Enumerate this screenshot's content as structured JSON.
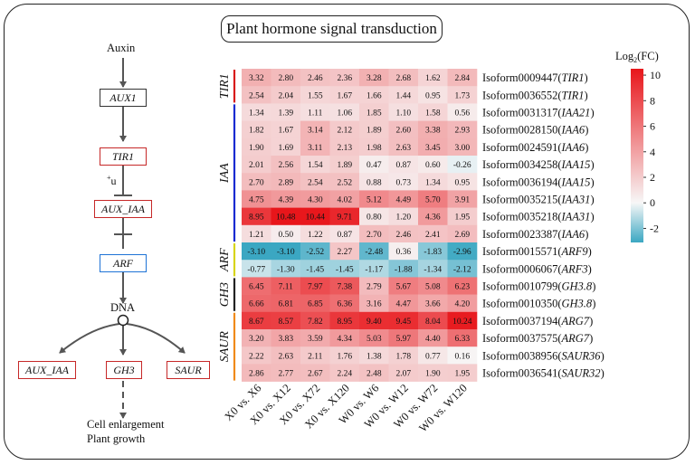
{
  "title": "Plant hormone signal transduction",
  "pathway": {
    "auxin": "Auxin",
    "aux1": "AUX1",
    "tir1": "TIR1",
    "ub": "u",
    "ub_sup": "+",
    "aux_iaa": "AUX_IAA",
    "arf": "ARF",
    "dna": "DNA",
    "out_aux_iaa": "AUX_IAA",
    "out_gh3": "GH3",
    "out_saur": "SAUR",
    "response_1": "Cell enlargement",
    "response_2": "Plant growth"
  },
  "colorbar": {
    "label_main": "Log",
    "label_sub": "2",
    "label_tail": "(FC)",
    "ticks": [
      10,
      8,
      6,
      4,
      2,
      0,
      -2
    ],
    "range": [
      -3.1,
      10.5
    ],
    "colors": {
      "low": "#3ba7c2",
      "mid": "#f7f7f7",
      "high": "#e8161b"
    }
  },
  "chart_data": {
    "type": "heatmap",
    "columns": [
      "X0 vs. X6",
      "X0 vs. X12",
      "X0 vs. X72",
      "X0 vs. X120",
      "W0 vs. W6",
      "W0 vs. W12",
      "W0 vs. W72",
      "W0 vs. W120"
    ],
    "rows": [
      {
        "id": "Isoform0009447",
        "gene": "TIR1"
      },
      {
        "id": "Isoform0036552",
        "gene": "TIR1"
      },
      {
        "id": "Isoform0031317",
        "gene": "IAA21"
      },
      {
        "id": "Isoform0028150",
        "gene": "IAA6"
      },
      {
        "id": "Isoform0024591",
        "gene": "IAA6"
      },
      {
        "id": "Isoform0034258",
        "gene": "IAA15"
      },
      {
        "id": "Isoform0036194",
        "gene": "IAA15"
      },
      {
        "id": "Isoform0035215",
        "gene": "IAA31"
      },
      {
        "id": "Isoform0035218",
        "gene": "IAA31"
      },
      {
        "id": "Isoform0023387",
        "gene": "IAA6"
      },
      {
        "id": "Isoform0015571",
        "gene": "ARF9"
      },
      {
        "id": "Isoform0006067",
        "gene": "ARF3"
      },
      {
        "id": "Isoform0010799",
        "gene": "GH3.8"
      },
      {
        "id": "Isoform0010350",
        "gene": "GH3.8"
      },
      {
        "id": "Isoform0037194",
        "gene": "ARG7"
      },
      {
        "id": "Isoform0037575",
        "gene": "ARG7"
      },
      {
        "id": "Isoform0038956",
        "gene": "SAUR36"
      },
      {
        "id": "Isoform0036541",
        "gene": "SAUR32"
      }
    ],
    "values": [
      [
        3.32,
        2.8,
        2.46,
        2.36,
        3.28,
        2.68,
        1.62,
        2.84
      ],
      [
        2.54,
        2.04,
        1.55,
        1.67,
        1.66,
        1.44,
        0.95,
        1.73
      ],
      [
        1.34,
        1.39,
        1.11,
        1.06,
        1.85,
        1.1,
        1.58,
        0.56
      ],
      [
        1.82,
        1.67,
        3.14,
        2.12,
        1.89,
        2.6,
        3.38,
        2.93
      ],
      [
        1.9,
        1.69,
        3.11,
        2.13,
        1.98,
        2.63,
        3.45,
        3.0
      ],
      [
        2.01,
        2.56,
        1.54,
        1.89,
        0.47,
        0.87,
        0.6,
        -0.26
      ],
      [
        2.7,
        2.89,
        2.54,
        2.52,
        0.88,
        0.73,
        1.34,
        0.95
      ],
      [
        4.75,
        4.39,
        4.3,
        4.02,
        5.12,
        4.49,
        5.7,
        3.91
      ],
      [
        8.95,
        10.48,
        10.44,
        9.71,
        0.8,
        1.2,
        4.36,
        1.95
      ],
      [
        1.21,
        0.5,
        1.22,
        0.87,
        2.7,
        2.46,
        2.41,
        2.69
      ],
      [
        -3.1,
        -3.1,
        -2.52,
        2.27,
        -2.48,
        0.36,
        -1.83,
        -2.96
      ],
      [
        -0.77,
        -1.3,
        -1.45,
        -1.45,
        -1.17,
        -1.88,
        -1.34,
        -2.12
      ],
      [
        6.45,
        7.11,
        7.97,
        7.38,
        2.79,
        5.67,
        5.08,
        6.23
      ],
      [
        6.66,
        6.81,
        6.85,
        6.36,
        3.16,
        4.47,
        3.66,
        4.2
      ],
      [
        8.67,
        8.57,
        7.82,
        8.95,
        9.4,
        9.45,
        8.04,
        10.24
      ],
      [
        3.2,
        3.83,
        3.59,
        4.34,
        5.03,
        5.97,
        4.4,
        6.33
      ],
      [
        2.22,
        2.63,
        2.11,
        1.76,
        1.38,
        1.78,
        0.77,
        0.16
      ],
      [
        2.86,
        2.77,
        2.67,
        2.24,
        2.48,
        2.07,
        1.9,
        1.95
      ]
    ],
    "groups": [
      {
        "label": "TIR1",
        "start": 0,
        "end": 1,
        "color": "#d81b1b"
      },
      {
        "label": "IAA",
        "start": 2,
        "end": 9,
        "color": "#1a2bd1"
      },
      {
        "label": "ARF",
        "start": 10,
        "end": 11,
        "color": "#d7d41a"
      },
      {
        "label": "GH3",
        "start": 12,
        "end": 13,
        "color": "#222222"
      },
      {
        "label": "SAUR",
        "start": 14,
        "end": 17,
        "color": "#f08a1a"
      }
    ]
  }
}
